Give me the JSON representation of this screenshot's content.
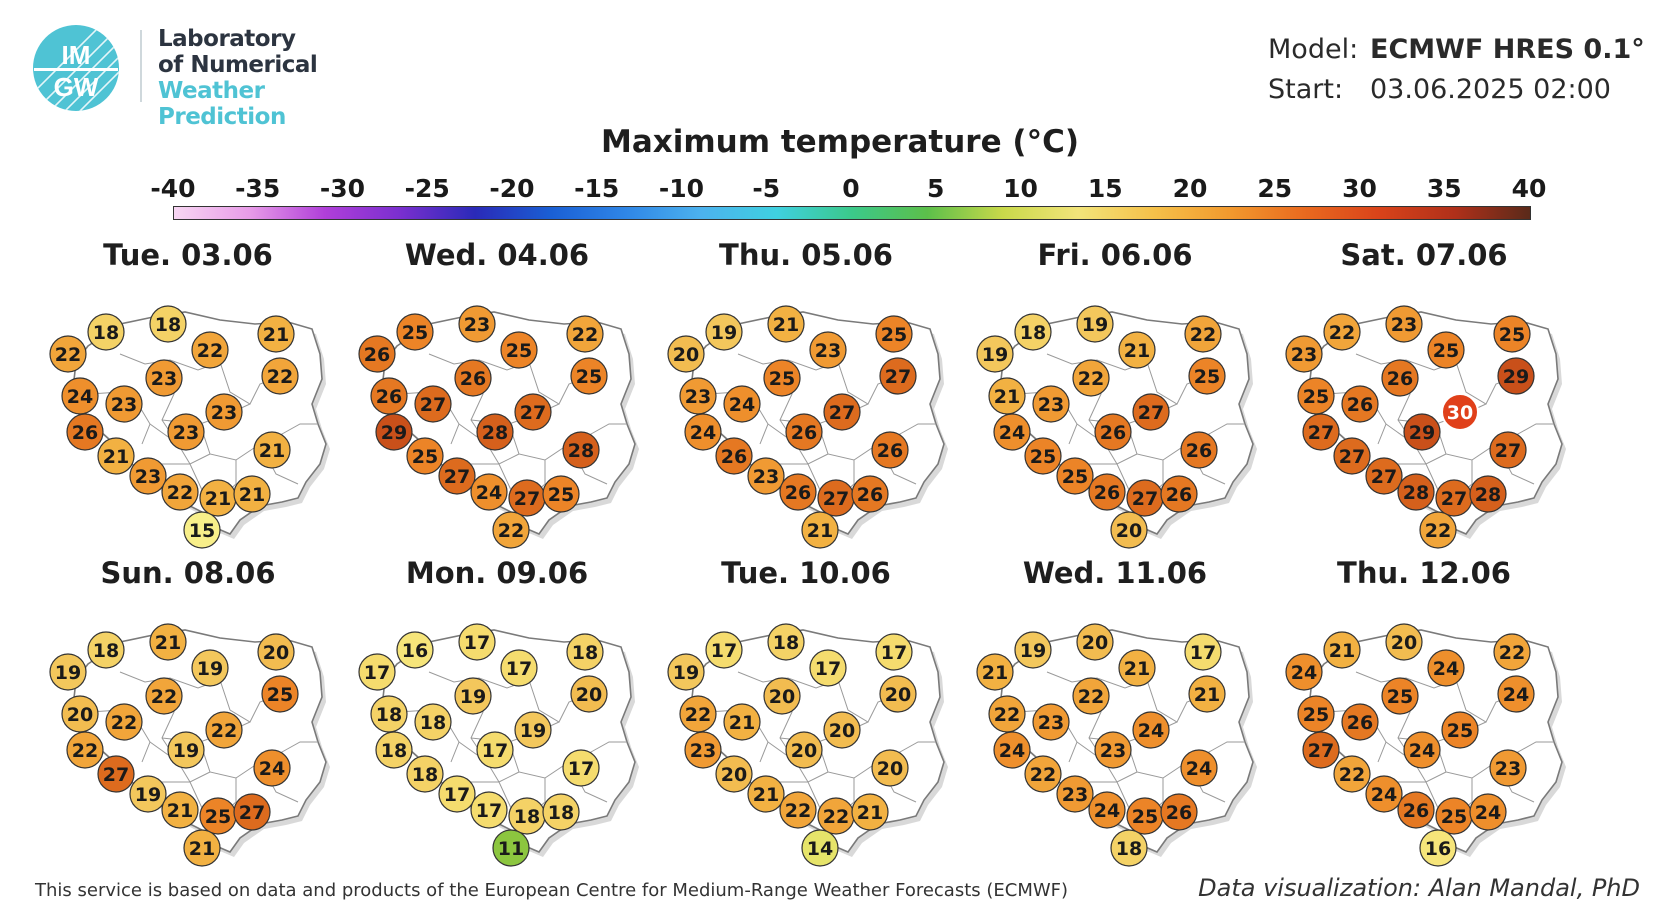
{
  "logo": {
    "letters_top": "IM",
    "letters_bottom": "GW",
    "line1": "Laboratory",
    "line2": "of Numerical",
    "line3": "Weather Prediction"
  },
  "meta": {
    "model_label": "Model:",
    "model_value": "ECMWF HRES 0.1°",
    "start_label": "Start:",
    "start_value": "03.06.2025 02:00"
  },
  "title": "Maximum temperature (°C)",
  "colorbar": {
    "ticks": [
      "-40",
      "-35",
      "-30",
      "-25",
      "-20",
      "-15",
      "-10",
      "-5",
      "0",
      "5",
      "10",
      "15",
      "20",
      "25",
      "30",
      "35",
      "40"
    ],
    "stops": [
      "#f7d6f2",
      "#e89ce8",
      "#b03fd9",
      "#7a2fcf",
      "#2a2ab8",
      "#1a5fd4",
      "#2f86e6",
      "#4cb2ee",
      "#3fd0e0",
      "#3bc98a",
      "#5cbf4a",
      "#c9d94a",
      "#f2e47a",
      "#f5c14a",
      "#f29a2e",
      "#e96a1f",
      "#d9431a",
      "#b0301a",
      "#5a2a1a"
    ]
  },
  "panels": [
    {
      "date": "Tue. 03.06",
      "temps": [
        22,
        18,
        18,
        22,
        21,
        22,
        23,
        24,
        23,
        23,
        26,
        23,
        21,
        21,
        23,
        22,
        21,
        21,
        15
      ]
    },
    {
      "date": "Wed. 04.06",
      "temps": [
        26,
        25,
        23,
        25,
        22,
        25,
        26,
        26,
        27,
        27,
        29,
        28,
        28,
        25,
        27,
        24,
        27,
        25,
        22
      ]
    },
    {
      "date": "Thu. 05.06",
      "temps": [
        20,
        19,
        21,
        23,
        25,
        27,
        25,
        23,
        24,
        27,
        24,
        26,
        26,
        26,
        23,
        26,
        27,
        26,
        21
      ]
    },
    {
      "date": "Fri. 06.06",
      "temps": [
        19,
        18,
        19,
        21,
        22,
        25,
        22,
        21,
        23,
        27,
        24,
        26,
        26,
        25,
        25,
        26,
        27,
        26,
        20
      ]
    },
    {
      "date": "Sat. 07.06",
      "temps": [
        23,
        22,
        23,
        25,
        25,
        29,
        26,
        25,
        26,
        30,
        27,
        29,
        27,
        27,
        27,
        28,
        27,
        28,
        22
      ]
    },
    {
      "date": "Sun. 08.06",
      "temps": [
        19,
        18,
        21,
        19,
        20,
        25,
        22,
        20,
        22,
        22,
        22,
        19,
        24,
        27,
        19,
        21,
        25,
        27,
        21
      ]
    },
    {
      "date": "Mon. 09.06",
      "temps": [
        17,
        16,
        17,
        17,
        18,
        20,
        19,
        18,
        18,
        19,
        18,
        17,
        17,
        18,
        17,
        17,
        18,
        18,
        11
      ]
    },
    {
      "date": "Tue. 10.06",
      "temps": [
        19,
        17,
        18,
        17,
        17,
        20,
        20,
        22,
        21,
        20,
        23,
        20,
        20,
        20,
        21,
        22,
        22,
        21,
        14
      ]
    },
    {
      "date": "Wed. 11.06",
      "temps": [
        21,
        19,
        20,
        21,
        17,
        21,
        22,
        22,
        23,
        24,
        24,
        23,
        24,
        22,
        23,
        24,
        25,
        26,
        18
      ]
    },
    {
      "date": "Thu. 12.06",
      "temps": [
        24,
        21,
        20,
        24,
        22,
        24,
        25,
        25,
        26,
        25,
        27,
        24,
        23,
        22,
        24,
        26,
        25,
        24,
        16
      ]
    }
  ],
  "legend_colors": {
    "11": "#8cc63f",
    "14": "#e6e46a",
    "15": "#f8ef8a",
    "16": "#f6e57a",
    "17": "#f5dc6e",
    "18": "#f4d266",
    "19": "#f3c75c",
    "20": "#f2bc50",
    "21": "#f2b142",
    "22": "#f1a53a",
    "23": "#f09a33",
    "24": "#ee8f2c",
    "25": "#ec8427",
    "26": "#e57822",
    "27": "#dd6b1e",
    "28": "#d5601c",
    "29": "#c9501a",
    "30": "#e0401a"
  },
  "footer_left": "This service is based on data and products of the European Centre for Medium-Range Weather Forecasts (ECMWF)",
  "footer_right": "Data visualization: Alan Mandal, PhD"
}
